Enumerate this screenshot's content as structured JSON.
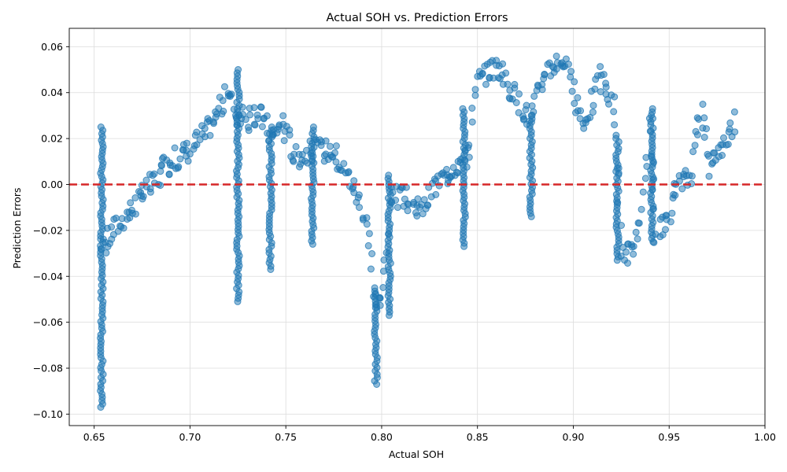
{
  "chart_data": {
    "type": "scatter",
    "title": "Actual SOH vs. Prediction Errors",
    "xlabel": "Actual SOH",
    "ylabel": "Prediction Errors",
    "xlim": [
      0.637,
      1.0
    ],
    "ylim": [
      -0.105,
      0.068
    ],
    "xticks": [
      "0.65",
      "0.70",
      "0.75",
      "0.80",
      "0.85",
      "0.90",
      "0.95",
      "1.00"
    ],
    "yticks": [
      "0.06",
      "0.04",
      "0.02",
      "0.00",
      "−0.02",
      "−0.04",
      "−0.06",
      "−0.08",
      "−0.10"
    ],
    "grid": true,
    "reference_line": {
      "y": 0.0,
      "style": "dashed",
      "color": "#d62728"
    },
    "point_color": "#1f77b4",
    "trend": [
      [
        0.654,
        -0.028
      ],
      [
        0.662,
        -0.018
      ],
      [
        0.672,
        -0.008
      ],
      [
        0.68,
        0.0
      ],
      [
        0.69,
        0.01
      ],
      [
        0.7,
        0.015
      ],
      [
        0.71,
        0.025
      ],
      [
        0.72,
        0.04
      ],
      [
        0.725,
        0.03
      ],
      [
        0.73,
        0.028
      ],
      [
        0.738,
        0.03
      ],
      [
        0.743,
        0.02
      ],
      [
        0.748,
        0.028
      ],
      [
        0.755,
        0.012
      ],
      [
        0.765,
        0.015
      ],
      [
        0.775,
        0.015
      ],
      [
        0.785,
        0.0
      ],
      [
        0.792,
        -0.015
      ],
      [
        0.796,
        -0.05
      ],
      [
        0.8,
        -0.052
      ],
      [
        0.805,
        -0.005
      ],
      [
        0.812,
        -0.006
      ],
      [
        0.82,
        -0.012
      ],
      [
        0.83,
        0.002
      ],
      [
        0.838,
        0.008
      ],
      [
        0.845,
        0.012
      ],
      [
        0.85,
        0.045
      ],
      [
        0.86,
        0.052
      ],
      [
        0.87,
        0.038
      ],
      [
        0.878,
        0.028
      ],
      [
        0.885,
        0.05
      ],
      [
        0.895,
        0.055
      ],
      [
        0.905,
        0.025
      ],
      [
        0.915,
        0.048
      ],
      [
        0.922,
        0.03
      ],
      [
        0.925,
        -0.028
      ],
      [
        0.93,
        -0.03
      ],
      [
        0.935,
        -0.02
      ],
      [
        0.94,
        0.025
      ],
      [
        0.943,
        -0.022
      ],
      [
        0.95,
        -0.015
      ],
      [
        0.955,
        0.0
      ],
      [
        0.962,
        0.005
      ],
      [
        0.967,
        0.038
      ],
      [
        0.97,
        0.008
      ],
      [
        0.978,
        0.018
      ],
      [
        0.985,
        0.028
      ]
    ],
    "vertical_bands": [
      {
        "x": 0.654,
        "y_range": [
          -0.097,
          0.025
        ]
      },
      {
        "x": 0.725,
        "y_range": [
          -0.051,
          0.05
        ]
      },
      {
        "x": 0.742,
        "y_range": [
          -0.037,
          0.025
        ]
      },
      {
        "x": 0.764,
        "y_range": [
          -0.026,
          0.025
        ]
      },
      {
        "x": 0.797,
        "y_range": [
          -0.087,
          -0.045
        ]
      },
      {
        "x": 0.804,
        "y_range": [
          -0.057,
          0.004
        ]
      },
      {
        "x": 0.843,
        "y_range": [
          -0.027,
          0.033
        ]
      },
      {
        "x": 0.878,
        "y_range": [
          -0.014,
          0.03
        ]
      },
      {
        "x": 0.923,
        "y_range": [
          -0.033,
          0.02
        ]
      },
      {
        "x": 0.941,
        "y_range": [
          -0.025,
          0.033
        ]
      }
    ]
  }
}
